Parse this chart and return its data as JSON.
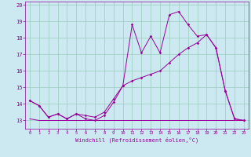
{
  "xlabel": "Windchill (Refroidissement éolien,°C)",
  "background_color": "#cce8f0",
  "grid_color": "#99ccbb",
  "line_color": "#990099",
  "xlim": [
    -0.5,
    23.5
  ],
  "ylim": [
    12.5,
    20.2
  ],
  "yticks": [
    13,
    14,
    15,
    16,
    17,
    18,
    19,
    20
  ],
  "xticks": [
    0,
    1,
    2,
    3,
    4,
    5,
    6,
    7,
    8,
    9,
    10,
    11,
    12,
    13,
    14,
    15,
    16,
    17,
    18,
    19,
    20,
    21,
    22,
    23
  ],
  "line1_x": [
    0,
    1,
    2,
    3,
    4,
    5,
    6,
    7,
    8,
    9,
    10,
    11,
    12,
    13,
    14,
    15,
    16,
    17,
    18,
    19,
    20,
    21,
    22,
    23
  ],
  "line1_y": [
    14.2,
    13.9,
    13.2,
    13.4,
    13.1,
    13.4,
    13.1,
    13.0,
    13.3,
    14.1,
    15.1,
    18.8,
    17.1,
    18.1,
    17.1,
    19.4,
    19.6,
    18.8,
    18.1,
    18.2,
    17.4,
    14.8,
    13.1,
    13.0
  ],
  "line2_x": [
    0,
    1,
    2,
    3,
    4,
    5,
    6,
    7,
    8,
    9,
    10,
    11,
    12,
    13,
    14,
    15,
    16,
    17,
    18,
    19,
    20,
    21,
    22,
    23
  ],
  "line2_y": [
    14.2,
    13.9,
    13.2,
    13.4,
    13.1,
    13.4,
    13.3,
    13.2,
    13.5,
    14.3,
    15.1,
    15.4,
    15.6,
    15.8,
    16.0,
    16.5,
    17.0,
    17.4,
    17.7,
    18.2,
    17.4,
    14.8,
    13.1,
    13.0
  ],
  "line3_x": [
    0,
    1,
    2,
    3,
    4,
    5,
    6,
    7,
    8,
    9,
    10,
    11,
    12,
    13,
    14,
    15,
    16,
    17,
    18,
    19,
    20,
    21,
    22,
    23
  ],
  "line3_y": [
    13.1,
    13.0,
    13.0,
    13.0,
    13.0,
    13.0,
    13.0,
    13.0,
    13.0,
    13.0,
    13.0,
    13.0,
    13.0,
    13.0,
    13.0,
    13.0,
    13.0,
    13.0,
    13.0,
    13.0,
    13.0,
    13.0,
    13.0,
    13.0
  ]
}
